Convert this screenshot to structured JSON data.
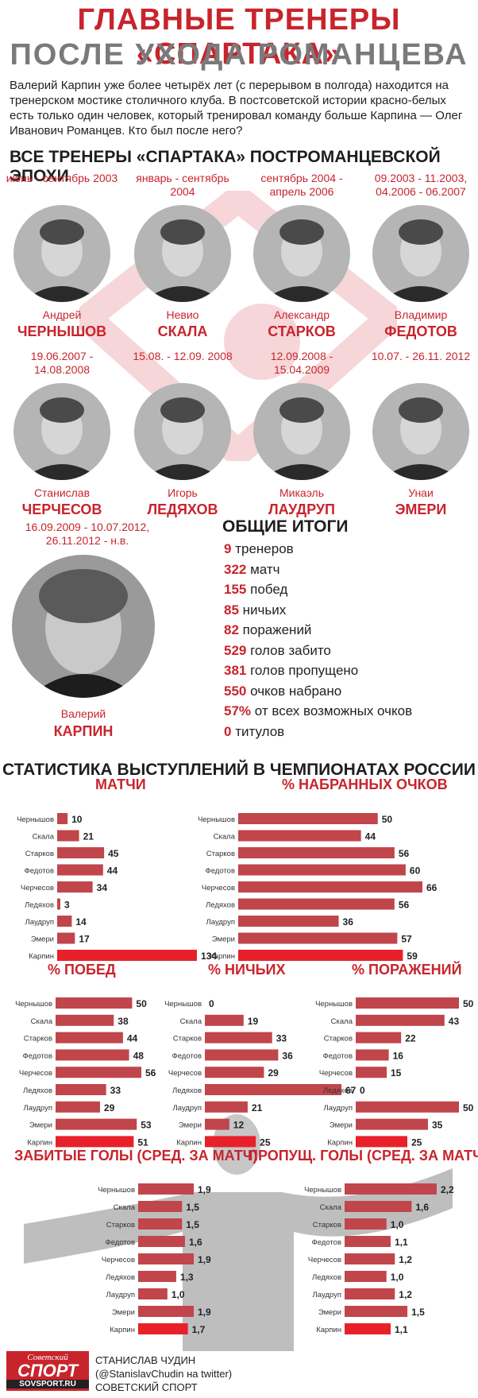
{
  "header": {
    "title_line1": "ГЛАВНЫЕ ТРЕНЕРЫ «СПАРТАКА»",
    "title_line2": "ПОСЛЕ УХОДА РОМАНЦЕВА",
    "intro": "Валерий Карпин уже более четырёх лет (с перерывом в полгода) находится на тренерском мостике столичного клуба. В постсоветской истории красно-белых есть только один человек, который тренировал команду больше Карпина — Олег Иванович Романцев. Кто был после него?"
  },
  "coaches_section": {
    "heading": "ВСЕ ТРЕНЕРЫ «СПАРТАКА» ПОСТРОМАНЦЕВСКОЙ ЭПОХИ",
    "coaches": [
      {
        "date": "июнь - сентябрь 2003",
        "first": "Андрей",
        "last": "ЧЕРНЫШОВ"
      },
      {
        "date": "январь - сентябрь 2004",
        "first": "Невио",
        "last": "СКАЛА"
      },
      {
        "date": "сентябрь 2004 - апрель 2006",
        "first": "Александр",
        "last": "СТАРКОВ"
      },
      {
        "date": "09.2003 - 11.2003, 04.2006 - 06.2007",
        "first": "Владимир",
        "last": "ФЕДОТОВ"
      },
      {
        "date": "19.06.2007 - 14.08.2008",
        "first": "Станислав",
        "last": "ЧЕРЧЕСОВ"
      },
      {
        "date": "15.08. - 12.09. 2008",
        "first": "Игорь",
        "last": "ЛЕДЯХОВ"
      },
      {
        "date": "12.09.2008 - 15.04.2009",
        "first": "Микаэль",
        "last": "ЛАУДРУП"
      },
      {
        "date": "10.07. - 26.11. 2012",
        "first": "Унаи",
        "last": "ЭМЕРИ"
      }
    ],
    "karpin": {
      "date": "16.09.2009 - 10.07.2012, 26.11.2012 - н.в.",
      "first": "Валерий",
      "last": "КАРПИН"
    }
  },
  "totals": {
    "heading": "ОБЩИЕ ИТОГИ",
    "items": [
      {
        "value": "9",
        "label": "тренеров"
      },
      {
        "value": "322",
        "label": "матч"
      },
      {
        "value": "155",
        "label": "побед"
      },
      {
        "value": "85",
        "label": "ничьих"
      },
      {
        "value": "82",
        "label": "поражений"
      },
      {
        "value": "529",
        "label": "голов забито"
      },
      {
        "value": "381",
        "label": "голов пропущено"
      },
      {
        "value": "550",
        "label": "очков набрано"
      },
      {
        "value": "57%",
        "label": "от всех возможных очков"
      },
      {
        "value": "0",
        "label": "титулов"
      }
    ]
  },
  "stats_heading": "СТАТИСТИКА ВЫСТУПЛЕНИЙ В ЧЕМПИОНАТАХ РОССИИ",
  "colors": {
    "accent": "#c8242c",
    "bar": "#c0464b",
    "bar_highlight": "#e8202a"
  },
  "chart_data": [
    {
      "type": "bar",
      "title": "МАТЧИ",
      "categories": [
        "Чернышов",
        "Скала",
        "Старков",
        "Федотов",
        "Черчесов",
        "Ледяхов",
        "Лаудруп",
        "Эмери",
        "Карпин"
      ],
      "values": [
        10,
        21,
        45,
        44,
        34,
        3,
        14,
        17,
        134
      ],
      "labels": [
        "10",
        "21",
        "45",
        "44",
        "34",
        "3",
        "14",
        "17",
        "134"
      ],
      "xlim": [
        0,
        134
      ]
    },
    {
      "type": "bar",
      "title": "% НАБРАННЫХ ОЧКОВ",
      "categories": [
        "Чернышов",
        "Скала",
        "Старков",
        "Федотов",
        "Черчесов",
        "Ледяхов",
        "Лаудруп",
        "Эмери",
        "Карпин"
      ],
      "values": [
        50,
        44,
        56,
        60,
        66,
        56,
        36,
        57,
        59
      ],
      "labels": [
        "50",
        "44",
        "56",
        "60",
        "66",
        "56",
        "36",
        "57",
        "59"
      ],
      "xlim": [
        0,
        66
      ]
    },
    {
      "type": "bar",
      "title": "% ПОБЕД",
      "categories": [
        "Чернышов",
        "Скала",
        "Старков",
        "Федотов",
        "Черчесов",
        "Ледяхов",
        "Лаудруп",
        "Эмери",
        "Карпин"
      ],
      "values": [
        50,
        38,
        44,
        48,
        56,
        33,
        29,
        53,
        51
      ],
      "labels": [
        "50",
        "38",
        "44",
        "48",
        "56",
        "33",
        "29",
        "53",
        "51"
      ],
      "xlim": [
        0,
        56
      ]
    },
    {
      "type": "bar",
      "title": "% НИЧЬИХ",
      "categories": [
        "Чернышов",
        "Скала",
        "Старков",
        "Федотов",
        "Черчесов",
        "Ледяхов",
        "Лаудруп",
        "Эмери",
        "Карпин"
      ],
      "values": [
        0,
        19,
        33,
        36,
        29,
        67,
        21,
        12,
        25
      ],
      "labels": [
        "0",
        "19",
        "33",
        "36",
        "29",
        "67",
        "21",
        "12",
        "25"
      ],
      "xlim": [
        0,
        67
      ]
    },
    {
      "type": "bar",
      "title": "% ПОРАЖЕНИЙ",
      "categories": [
        "Чернышов",
        "Скала",
        "Старков",
        "Федотов",
        "Черчесов",
        "Ледяхов",
        "Лаудруп",
        "Эмери",
        "Карпин"
      ],
      "values": [
        50,
        43,
        22,
        16,
        15,
        0,
        50,
        35,
        25
      ],
      "labels": [
        "50",
        "43",
        "22",
        "16",
        "15",
        "0",
        "50",
        "35",
        "25"
      ],
      "xlim": [
        0,
        50
      ]
    },
    {
      "type": "bar",
      "title": "ЗАБИТЫЕ ГОЛЫ (СРЕД. ЗА МАТЧ)",
      "categories": [
        "Чернышов",
        "Скала",
        "Старков",
        "Федотов",
        "Черчесов",
        "Ледяхов",
        "Лаудруп",
        "Эмери",
        "Карпин"
      ],
      "values": [
        1.9,
        1.5,
        1.5,
        1.6,
        1.9,
        1.3,
        1.0,
        1.9,
        1.7
      ],
      "labels": [
        "1,9",
        "1,5",
        "1,5",
        "1,6",
        "1,9",
        "1,3",
        "1,0",
        "1,9",
        "1,7"
      ],
      "xlim": [
        0,
        1.9
      ]
    },
    {
      "type": "bar",
      "title": "ПРОПУЩ. ГОЛЫ (СРЕД. ЗА МАТЧ)",
      "categories": [
        "Чернышов",
        "Скала",
        "Старков",
        "Федотов",
        "Черчесов",
        "Ледяхов",
        "Лаудруп",
        "Эмери",
        "Карпин"
      ],
      "values": [
        2.2,
        1.6,
        1.0,
        1.1,
        1.2,
        1.0,
        1.2,
        1.5,
        1.1
      ],
      "labels": [
        "2,2",
        "1,6",
        "1,0",
        "1,1",
        "1,2",
        "1,0",
        "1,2",
        "1,5",
        "1,1"
      ],
      "xlim": [
        0,
        2.2
      ]
    }
  ],
  "footer": {
    "logo_line1": "Советский",
    "logo_line2": "СПОРТ",
    "logo_line3": "SOVSPORT.RU",
    "credit_line1": "СТАНИСЛАВ ЧУДИН",
    "credit_line2": "(@StanislavChudin на twitter)",
    "credit_line3": "СОВЕТСКИЙ СПОРТ"
  }
}
